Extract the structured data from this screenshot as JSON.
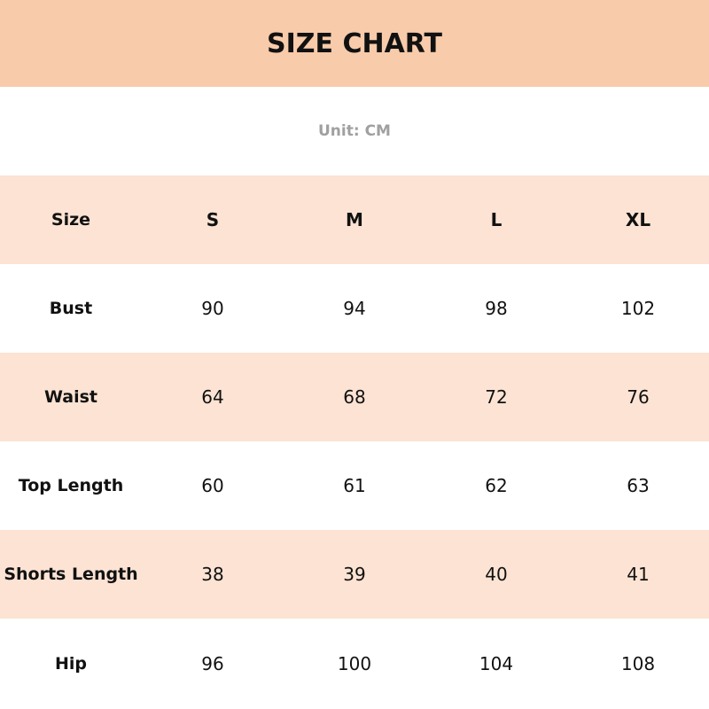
{
  "title": "SIZE CHART",
  "unit": "Unit: CM",
  "colors": {
    "title_band": "#F8CBAA",
    "stripe": "#FCE3D3",
    "unit_text": "#a0a0a0"
  },
  "table": {
    "header": [
      "Size",
      "S",
      "M",
      "L",
      "XL"
    ],
    "rows": [
      [
        "Bust",
        "90",
        "94",
        "98",
        "102"
      ],
      [
        "Waist",
        "64",
        "68",
        "72",
        "76"
      ],
      [
        "Top Length",
        "60",
        "61",
        "62",
        "63"
      ],
      [
        "Shorts Length",
        "38",
        "39",
        "40",
        "41"
      ],
      [
        "Hip",
        "96",
        "100",
        "104",
        "108"
      ]
    ]
  }
}
